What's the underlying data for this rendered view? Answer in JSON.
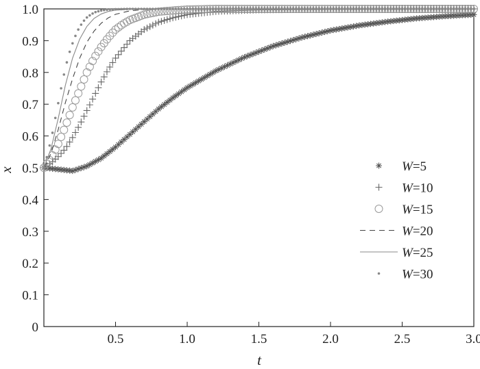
{
  "chart_data": {
    "type": "scatter",
    "xlabel": "t",
    "ylabel": "x",
    "xlim": [
      0,
      3.0
    ],
    "ylim": [
      0,
      1.0
    ],
    "xticks": [
      0.5,
      1.0,
      1.5,
      2.0,
      2.5,
      3.0
    ],
    "xtick_labels": [
      "0.5",
      "1.0",
      "1.5",
      "2.0",
      "2.5",
      "3.0"
    ],
    "yticks": [
      0,
      0.1,
      0.2,
      0.3,
      0.4,
      0.5,
      0.6,
      0.7,
      0.8,
      0.9,
      1.0
    ],
    "ytick_labels": [
      "0",
      "0.1",
      "0.2",
      "0.3",
      "0.4",
      "0.5",
      "0.6",
      "0.7",
      "0.8",
      "0.9",
      "1.0"
    ],
    "grid": false,
    "legend_position": "right",
    "series": [
      {
        "name": "W=5",
        "label_var": "W",
        "label_val": "=5",
        "marker": "asterisk",
        "color": "#555555",
        "x": [
          0.0,
          0.1,
          0.2,
          0.3,
          0.4,
          0.5,
          0.6,
          0.7,
          0.8,
          0.9,
          1.0,
          1.2,
          1.4,
          1.6,
          1.8,
          2.0,
          2.2,
          2.4,
          2.6,
          2.8,
          3.0
        ],
        "y": [
          0.5,
          0.495,
          0.49,
          0.505,
          0.53,
          0.565,
          0.605,
          0.645,
          0.685,
          0.72,
          0.752,
          0.805,
          0.848,
          0.883,
          0.91,
          0.932,
          0.948,
          0.96,
          0.97,
          0.977,
          0.982
        ]
      },
      {
        "name": "W=10",
        "label_var": "W",
        "label_val": "=10",
        "marker": "plus",
        "color": "#666666",
        "x": [
          0.0,
          0.05,
          0.1,
          0.15,
          0.2,
          0.25,
          0.3,
          0.35,
          0.4,
          0.45,
          0.5,
          0.6,
          0.7,
          0.8,
          0.9,
          1.0,
          1.2,
          1.5,
          2.0,
          2.5,
          3.0
        ],
        "y": [
          0.5,
          0.515,
          0.535,
          0.56,
          0.595,
          0.635,
          0.68,
          0.725,
          0.77,
          0.81,
          0.845,
          0.9,
          0.935,
          0.958,
          0.972,
          0.982,
          0.992,
          0.997,
          0.999,
          1.0,
          1.0
        ]
      },
      {
        "name": "W=15",
        "label_var": "W",
        "label_val": "=15",
        "marker": "circle",
        "color": "#999999",
        "x": [
          0.0,
          0.05,
          0.1,
          0.15,
          0.2,
          0.25,
          0.3,
          0.35,
          0.4,
          0.45,
          0.5,
          0.55,
          0.6,
          0.7,
          0.8,
          0.9,
          1.0,
          1.2,
          1.5,
          2.0,
          2.5,
          3.0
        ],
        "y": [
          0.5,
          0.53,
          0.575,
          0.63,
          0.69,
          0.745,
          0.8,
          0.845,
          0.88,
          0.91,
          0.935,
          0.952,
          0.965,
          0.982,
          0.991,
          0.995,
          0.998,
          1.0,
          1.0,
          1.0,
          1.0,
          1.0
        ]
      },
      {
        "name": "W=20",
        "label_var": "W",
        "label_val": "=20",
        "marker": "dashed",
        "color": "#444444",
        "x": [
          0.0,
          0.05,
          0.1,
          0.15,
          0.2,
          0.25,
          0.3,
          0.35,
          0.4,
          0.45,
          0.5,
          0.6,
          0.7,
          0.8,
          1.0
        ],
        "y": [
          0.5,
          0.545,
          0.62,
          0.705,
          0.78,
          0.845,
          0.895,
          0.93,
          0.955,
          0.972,
          0.983,
          0.994,
          0.998,
          1.0,
          1.0
        ]
      },
      {
        "name": "W=25",
        "label_var": "W",
        "label_val": "=25",
        "marker": "solid",
        "color": "#888888",
        "x": [
          0.0,
          0.05,
          0.1,
          0.15,
          0.2,
          0.25,
          0.3,
          0.35,
          0.4,
          0.45,
          0.5,
          0.6,
          0.8,
          1.0
        ],
        "y": [
          0.5,
          0.56,
          0.655,
          0.76,
          0.845,
          0.905,
          0.945,
          0.97,
          0.984,
          0.992,
          0.996,
          0.999,
          1.0,
          1.0
        ]
      },
      {
        "name": "W=30",
        "label_var": "W",
        "label_val": "=30",
        "marker": "dot",
        "color": "#888888",
        "x": [
          0.0,
          0.03,
          0.06,
          0.09,
          0.12,
          0.15,
          0.18,
          0.21,
          0.24,
          0.27,
          0.3,
          0.33,
          0.36,
          0.4,
          0.45,
          0.5,
          0.6,
          0.7,
          0.8,
          0.9,
          1.0
        ],
        "y": [
          0.5,
          0.55,
          0.61,
          0.68,
          0.75,
          0.815,
          0.865,
          0.905,
          0.935,
          0.958,
          0.973,
          0.983,
          0.99,
          0.995,
          0.998,
          0.999,
          1.0,
          1.0,
          1.0,
          1.0,
          1.0
        ]
      }
    ]
  }
}
